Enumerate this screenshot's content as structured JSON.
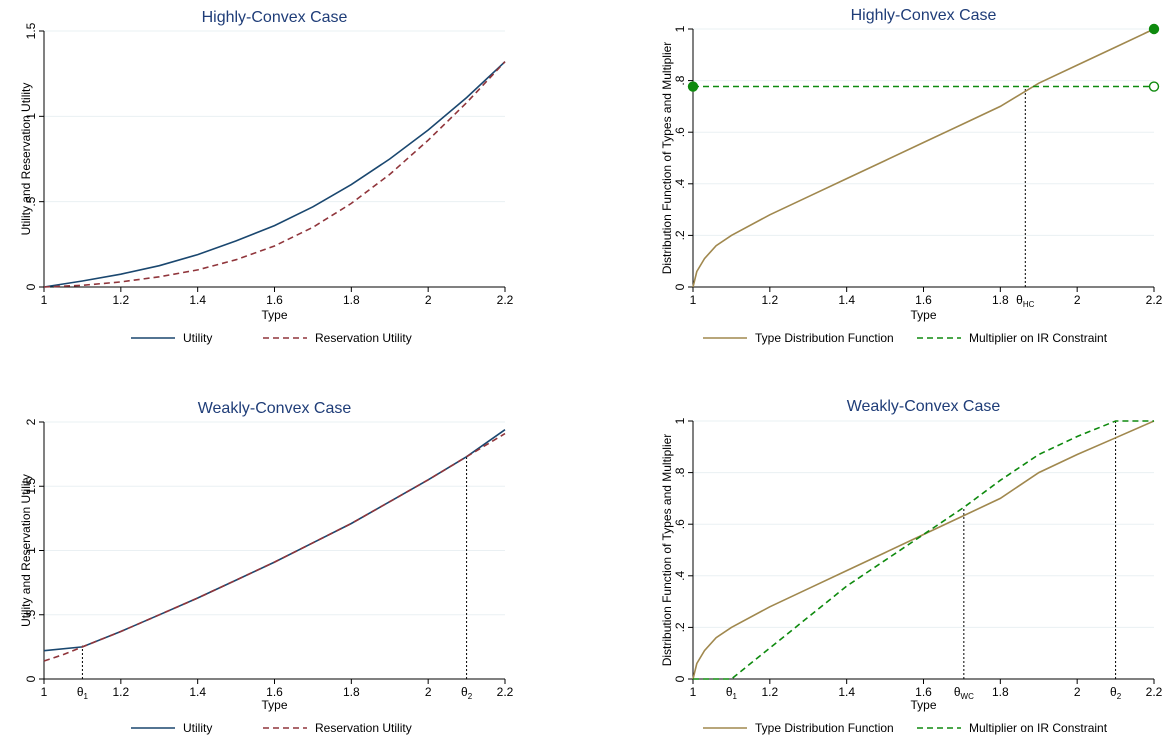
{
  "chart_data": [
    {
      "type": "line",
      "title": "Highly-Convex Case",
      "xlabel": "Type",
      "ylabel": "Utility and Reservation Utility",
      "xlim": [
        1,
        2.2
      ],
      "ylim": [
        0,
        1.5
      ],
      "x_ticks": [
        "1",
        "1.2",
        "1.4",
        "1.6",
        "1.8",
        "2",
        "2.2"
      ],
      "y_ticks": [
        "0",
        ".5",
        "1",
        "1.5"
      ],
      "series": [
        {
          "name": "Utility",
          "color": "#1a476f",
          "dash": "solid",
          "points": [
            [
              1,
              0
            ],
            [
              1.1,
              0.035
            ],
            [
              1.2,
              0.075
            ],
            [
              1.3,
              0.125
            ],
            [
              1.4,
              0.19
            ],
            [
              1.5,
              0.27
            ],
            [
              1.6,
              0.36
            ],
            [
              1.7,
              0.47
            ],
            [
              1.8,
              0.6
            ],
            [
              1.9,
              0.75
            ],
            [
              2.0,
              0.92
            ],
            [
              2.1,
              1.11
            ],
            [
              2.2,
              1.32
            ]
          ]
        },
        {
          "name": "Reservation Utility",
          "color": "#90353b",
          "dash": "dashed",
          "points": [
            [
              1,
              0
            ],
            [
              1.1,
              0.01
            ],
            [
              1.2,
              0.03
            ],
            [
              1.3,
              0.06
            ],
            [
              1.4,
              0.1
            ],
            [
              1.5,
              0.16
            ],
            [
              1.6,
              0.24
            ],
            [
              1.7,
              0.35
            ],
            [
              1.8,
              0.49
            ],
            [
              1.9,
              0.66
            ],
            [
              2.0,
              0.86
            ],
            [
              2.1,
              1.08
            ],
            [
              2.2,
              1.32
            ]
          ]
        }
      ]
    },
    {
      "type": "line",
      "title": "Highly-Convex Case",
      "xlabel": "Type",
      "ylabel": "Distribution Function of Types and Multiplier",
      "xlim": [
        1,
        2.2
      ],
      "ylim": [
        0,
        1
      ],
      "x_ticks": [
        "1",
        "1.2",
        "1.4",
        "1.6",
        "1.8",
        "2",
        "2.2"
      ],
      "y_ticks": [
        "0",
        ".2",
        ".4",
        ".6",
        ".8",
        "1"
      ],
      "x_markers": [
        {
          "x": 1.865,
          "label": "θ",
          "sub": "HC",
          "y_top": 0.777
        }
      ],
      "series": [
        {
          "name": "Type Distribution Function",
          "color": "#a0884e",
          "dash": "solid",
          "points": [
            [
              1,
              0
            ],
            [
              1.01,
              0.06
            ],
            [
              1.03,
              0.11
            ],
            [
              1.06,
              0.16
            ],
            [
              1.1,
              0.2
            ],
            [
              1.2,
              0.28
            ],
            [
              1.3,
              0.35
            ],
            [
              1.4,
              0.42
            ],
            [
              1.5,
              0.49
            ],
            [
              1.6,
              0.56
            ],
            [
              1.7,
              0.63
            ],
            [
              1.8,
              0.7
            ],
            [
              1.9,
              0.79
            ],
            [
              2.0,
              0.86
            ],
            [
              2.1,
              0.93
            ],
            [
              2.2,
              1.0
            ]
          ]
        },
        {
          "name": "Multiplier on IR Constraint",
          "color": "#0e8a0e",
          "dash": "dashed",
          "points": [
            [
              1,
              0.777
            ],
            [
              2.2,
              0.777
            ]
          ]
        }
      ],
      "dots": [
        {
          "x": 1,
          "y": 0.777,
          "filled": true
        },
        {
          "x": 2.2,
          "y": 1.0,
          "filled": true
        },
        {
          "x": 2.2,
          "y": 0.777,
          "filled": false
        }
      ]
    },
    {
      "type": "line",
      "title": "Weakly-Convex Case",
      "xlabel": "Type",
      "ylabel": "Utility and Reservation Utility",
      "xlim": [
        1,
        2.2
      ],
      "ylim": [
        0,
        2
      ],
      "x_ticks": [
        "1",
        "1.2",
        "1.4",
        "1.6",
        "1.8",
        "2",
        "2.2"
      ],
      "y_ticks": [
        "0",
        ".5",
        "1",
        "1.5",
        "2"
      ],
      "x_markers": [
        {
          "x": 1.1,
          "label": "θ",
          "sub": "1",
          "y_top": 0.26
        },
        {
          "x": 2.1,
          "label": "θ",
          "sub": "2",
          "y_top": 1.73
        }
      ],
      "series": [
        {
          "name": "Utility",
          "color": "#1a476f",
          "dash": "solid",
          "points": [
            [
              1,
              0.22
            ],
            [
              1.1,
              0.25
            ],
            [
              1.2,
              0.37
            ],
            [
              1.3,
              0.5
            ],
            [
              1.4,
              0.63
            ],
            [
              1.5,
              0.77
            ],
            [
              1.6,
              0.91
            ],
            [
              1.7,
              1.06
            ],
            [
              1.8,
              1.21
            ],
            [
              1.9,
              1.38
            ],
            [
              2.0,
              1.55
            ],
            [
              2.1,
              1.73
            ],
            [
              2.2,
              1.94
            ]
          ]
        },
        {
          "name": "Reservation Utility",
          "color": "#90353b",
          "dash": "dashed",
          "points": [
            [
              1,
              0.14
            ],
            [
              1.05,
              0.19
            ],
            [
              1.1,
              0.25
            ],
            [
              1.2,
              0.37
            ],
            [
              1.3,
              0.5
            ],
            [
              1.4,
              0.63
            ],
            [
              1.5,
              0.77
            ],
            [
              1.6,
              0.91
            ],
            [
              1.7,
              1.06
            ],
            [
              1.8,
              1.21
            ],
            [
              1.9,
              1.38
            ],
            [
              2.0,
              1.55
            ],
            [
              2.1,
              1.73
            ],
            [
              2.2,
              1.91
            ]
          ]
        }
      ]
    },
    {
      "type": "line",
      "title": "Weakly-Convex Case",
      "xlabel": "Type",
      "ylabel": "Distribution Function of Types and Multiplier",
      "xlim": [
        1,
        2.2
      ],
      "ylim": [
        0,
        1
      ],
      "x_ticks": [
        "1",
        "1.2",
        "1.4",
        "1.6",
        "1.8",
        "2",
        "2.2"
      ],
      "y_ticks": [
        "0",
        ".2",
        ".4",
        ".6",
        ".8",
        "1"
      ],
      "x_markers": [
        {
          "x": 1.1,
          "label": "θ",
          "sub": "1",
          "y_top": 0.0
        },
        {
          "x": 1.705,
          "label": "θ",
          "sub": "WC",
          "y_top": 0.665
        },
        {
          "x": 2.1,
          "label": "θ",
          "sub": "2",
          "y_top": 1.0
        }
      ],
      "series": [
        {
          "name": "Type Distribution Function",
          "color": "#a0884e",
          "dash": "solid",
          "points": [
            [
              1,
              0
            ],
            [
              1.01,
              0.06
            ],
            [
              1.03,
              0.11
            ],
            [
              1.06,
              0.16
            ],
            [
              1.1,
              0.2
            ],
            [
              1.2,
              0.28
            ],
            [
              1.3,
              0.35
            ],
            [
              1.4,
              0.42
            ],
            [
              1.5,
              0.49
            ],
            [
              1.6,
              0.56
            ],
            [
              1.7,
              0.63
            ],
            [
              1.8,
              0.7
            ],
            [
              1.9,
              0.8
            ],
            [
              2.0,
              0.87
            ],
            [
              2.1,
              0.935
            ],
            [
              2.2,
              1.0
            ]
          ]
        },
        {
          "name": "Multiplier on IR Constraint",
          "color": "#0e8a0e",
          "dash": "dashed",
          "points": [
            [
              1,
              0
            ],
            [
              1.1,
              0
            ],
            [
              1.2,
              0.12
            ],
            [
              1.3,
              0.24
            ],
            [
              1.4,
              0.36
            ],
            [
              1.5,
              0.46
            ],
            [
              1.6,
              0.56
            ],
            [
              1.705,
              0.665
            ],
            [
              1.8,
              0.77
            ],
            [
              1.9,
              0.87
            ],
            [
              2.0,
              0.94
            ],
            [
              2.1,
              1.0
            ],
            [
              2.2,
              1.0
            ]
          ]
        }
      ]
    }
  ]
}
